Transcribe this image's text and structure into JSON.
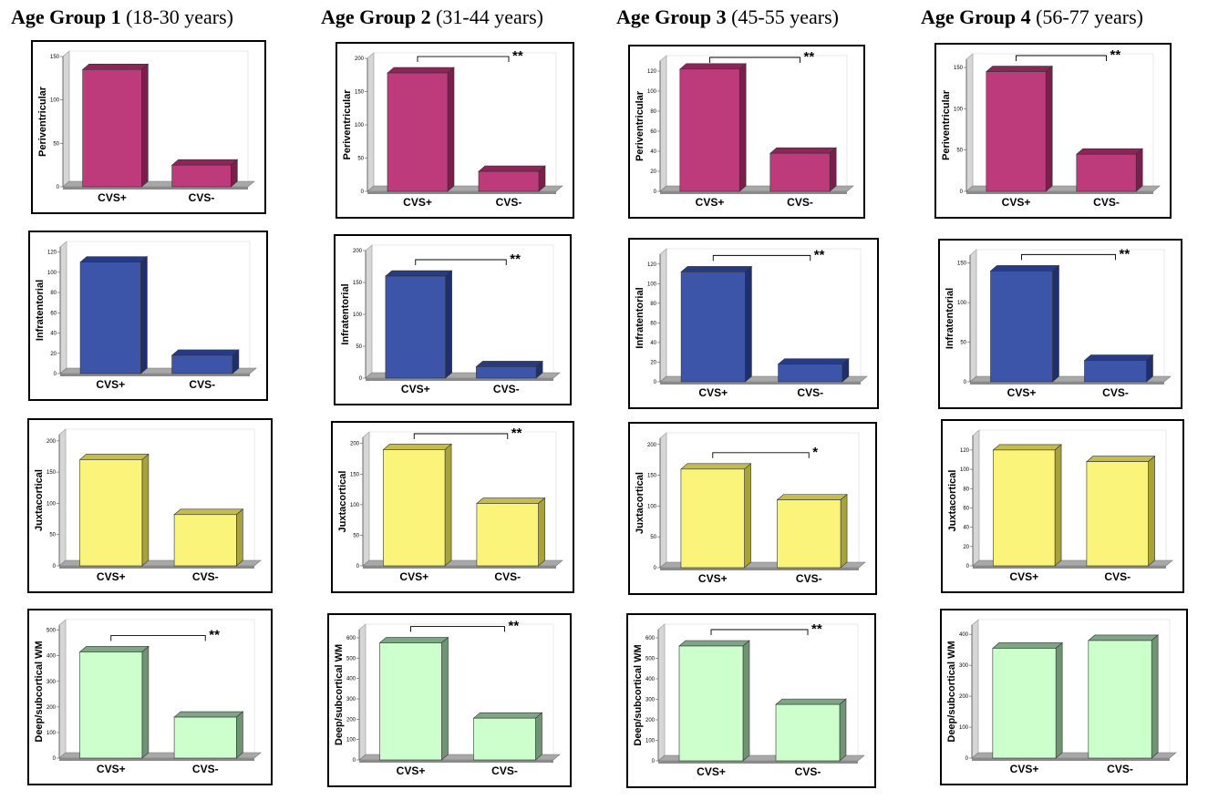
{
  "columns": [
    {
      "title": "Age Group  1",
      "range": "(18-30 years)"
    },
    {
      "title": "Age Group  2",
      "range": "(31-44 years)"
    },
    {
      "title": "Age Group  3",
      "range": "(45-55 years)"
    },
    {
      "title": "Age Group  4",
      "range": "(56-77 years)"
    }
  ],
  "colors": {
    "Periventricular": {
      "face": "#bd3a7b",
      "side": "#7a1e4c",
      "top": "#8e2558"
    },
    "Infratentorial": {
      "face": "#3c55a9",
      "side": "#1e2f6e",
      "top": "#263b84"
    },
    "Juxtacortical": {
      "face": "#fbf47a",
      "side": "#a8a23a",
      "top": "#c4bd4c"
    },
    "Deep/subcortical WM": {
      "face": "#ccffcc",
      "side": "#6f9474",
      "top": "#7fa586"
    }
  },
  "chart_data": [
    {
      "type": "bar",
      "group": 1,
      "region": "Periventricular",
      "title": "",
      "ylabel": "Periventricular",
      "categories": [
        "CVS+",
        "CVS-"
      ],
      "values": [
        135,
        25
      ],
      "ylim": [
        0,
        150
      ],
      "yticks": [
        0,
        50,
        100,
        150
      ],
      "significance": ""
    },
    {
      "type": "bar",
      "group": 2,
      "region": "Periventricular",
      "title": "",
      "ylabel": "Periventricular",
      "categories": [
        "CVS+",
        "CVS-"
      ],
      "values": [
        178,
        30
      ],
      "ylim": [
        0,
        200
      ],
      "yticks": [
        0,
        50,
        100,
        150,
        200
      ],
      "significance": "**"
    },
    {
      "type": "bar",
      "group": 3,
      "region": "Periventricular",
      "title": "",
      "ylabel": "Periventricular",
      "categories": [
        "CVS+",
        "CVS-"
      ],
      "values": [
        122,
        38
      ],
      "ylim": [
        0,
        130
      ],
      "yticks": [
        0,
        20,
        40,
        60,
        80,
        100,
        120
      ],
      "significance": "**"
    },
    {
      "type": "bar",
      "group": 4,
      "region": "Periventricular",
      "title": "",
      "ylabel": "Periventricular",
      "categories": [
        "CVS+",
        "CVS-"
      ],
      "values": [
        145,
        45
      ],
      "ylim": [
        0,
        160
      ],
      "yticks": [
        0,
        50,
        100,
        150
      ],
      "significance": "**"
    },
    {
      "type": "bar",
      "group": 1,
      "region": "Infratentorial",
      "title": "",
      "ylabel": "Infratentorial",
      "categories": [
        "CVS+",
        "CVS-"
      ],
      "values": [
        110,
        18
      ],
      "ylim": [
        0,
        125
      ],
      "yticks": [
        0,
        20,
        40,
        60,
        80,
        100,
        120
      ],
      "significance": ""
    },
    {
      "type": "bar",
      "group": 2,
      "region": "Infratentorial",
      "title": "",
      "ylabel": "Infratentorial",
      "categories": [
        "CVS+",
        "CVS-"
      ],
      "values": [
        160,
        18
      ],
      "ylim": [
        0,
        200
      ],
      "yticks": [
        0,
        50,
        100,
        150,
        200
      ],
      "significance": "**"
    },
    {
      "type": "bar",
      "group": 3,
      "region": "Infratentorial",
      "title": "",
      "ylabel": "Infratentorial",
      "categories": [
        "CVS+",
        "CVS-"
      ],
      "values": [
        112,
        18
      ],
      "ylim": [
        0,
        130
      ],
      "yticks": [
        0,
        20,
        40,
        60,
        80,
        100,
        120
      ],
      "significance": "**"
    },
    {
      "type": "bar",
      "group": 4,
      "region": "Infratentorial",
      "title": "",
      "ylabel": "Infratentorial",
      "categories": [
        "CVS+",
        "CVS-"
      ],
      "values": [
        140,
        27
      ],
      "ylim": [
        0,
        160
      ],
      "yticks": [
        0,
        50,
        100,
        150
      ],
      "significance": "**"
    },
    {
      "type": "bar",
      "group": 1,
      "region": "Juxtacortical",
      "title": "",
      "ylabel": "Juxtacortical",
      "categories": [
        "CVS+",
        "CVS-"
      ],
      "values": [
        170,
        82
      ],
      "ylim": [
        0,
        210
      ],
      "yticks": [
        0,
        50,
        100,
        150,
        200
      ],
      "significance": ""
    },
    {
      "type": "bar",
      "group": 2,
      "region": "Juxtacortical",
      "title": "",
      "ylabel": "Juxtacortical",
      "categories": [
        "CVS+",
        "CVS-"
      ],
      "values": [
        190,
        102
      ],
      "ylim": [
        0,
        210
      ],
      "yticks": [
        0,
        50,
        100,
        150,
        200
      ],
      "significance": "**"
    },
    {
      "type": "bar",
      "group": 3,
      "region": "Juxtacortical",
      "title": "",
      "ylabel": "Juxtacortical",
      "categories": [
        "CVS+",
        "CVS-"
      ],
      "values": [
        160,
        110
      ],
      "ylim": [
        0,
        210
      ],
      "yticks": [
        0,
        50,
        100,
        150,
        200
      ],
      "significance": "*"
    },
    {
      "type": "bar",
      "group": 4,
      "region": "Juxtacortical",
      "title": "",
      "ylabel": "Juxtacortical",
      "categories": [
        "CVS+",
        "CVS-"
      ],
      "values": [
        120,
        108
      ],
      "ylim": [
        0,
        135
      ],
      "yticks": [
        0,
        20,
        40,
        60,
        80,
        100,
        120
      ],
      "significance": ""
    },
    {
      "type": "bar",
      "group": 1,
      "region": "Deep/subcortical WM",
      "title": "",
      "ylabel": "Deep/subcortical WM",
      "categories": [
        "CVS+",
        "CVS-"
      ],
      "values": [
        415,
        160
      ],
      "ylim": [
        0,
        520
      ],
      "yticks": [
        0,
        100,
        200,
        300,
        400,
        500
      ],
      "significance": "**"
    },
    {
      "type": "bar",
      "group": 2,
      "region": "Deep/subcortical WM",
      "title": "",
      "ylabel": "Deep/subcortical WM",
      "categories": [
        "CVS+",
        "CVS-"
      ],
      "values": [
        575,
        205
      ],
      "ylim": [
        0,
        640
      ],
      "yticks": [
        0,
        100,
        200,
        300,
        400,
        500,
        600
      ],
      "significance": "**"
    },
    {
      "type": "bar",
      "group": 3,
      "region": "Deep/subcortical WM",
      "title": "",
      "ylabel": "Deep/subcortical WM",
      "categories": [
        "CVS+",
        "CVS-"
      ],
      "values": [
        560,
        275
      ],
      "ylim": [
        0,
        640
      ],
      "yticks": [
        0,
        100,
        200,
        300,
        400,
        500,
        600
      ],
      "significance": "**"
    },
    {
      "type": "bar",
      "group": 4,
      "region": "Deep/subcortical WM",
      "title": "",
      "ylabel": "Deep/subcortical WM",
      "categories": [
        "CVS+",
        "CVS-"
      ],
      "values": [
        355,
        380
      ],
      "ylim": [
        0,
        430
      ],
      "yticks": [
        0,
        100,
        200,
        300,
        400
      ],
      "significance": ""
    }
  ]
}
